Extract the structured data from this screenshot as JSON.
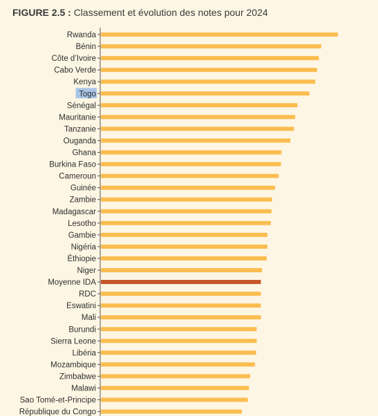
{
  "header": {
    "figure_number": "FIGURE 2.5 :",
    "figure_title": "Classement et évolution des notes pour 2024"
  },
  "colors": {
    "bar": "#fbbd50",
    "highlight_bar": "#c8552a",
    "label_highlight_bg": "#a9c6e8",
    "axis": "#555555",
    "label": "#2f2f2f",
    "background": "#fdf6e4"
  },
  "chart_data": {
    "type": "bar",
    "orientation": "horizontal",
    "title": "Classement et évolution des notes pour 2024",
    "categories": [
      "Rwanda",
      "Bénin",
      "Côte d’Ivoire",
      "Cabo Verde",
      "Kenya",
      "Togo",
      "Sénégal",
      "Mauritanie",
      "Tanzanie",
      "Ouganda",
      "Ghana",
      "Burkina Faso",
      "Cameroun",
      "Guinée",
      "Zambie",
      "Madagascar",
      "Lesotho",
      "Gambie",
      "Nigéria",
      "Éthiopie",
      "Niger",
      "Moyenne IDA",
      "RDC",
      "Eswatini",
      "Mali",
      "Burundi",
      "Sierra Leone",
      "Libéria",
      "Mozambique",
      "Zimbabwe",
      "Malawi",
      "Sao Tomé-et-Principe",
      "République du Congo"
    ],
    "values": [
      4.0,
      3.72,
      3.68,
      3.65,
      3.62,
      3.52,
      3.32,
      3.28,
      3.26,
      3.2,
      3.05,
      3.04,
      3.0,
      2.94,
      2.89,
      2.88,
      2.87,
      2.81,
      2.81,
      2.8,
      2.72,
      2.7,
      2.7,
      2.7,
      2.7,
      2.63,
      2.63,
      2.62,
      2.6,
      2.52,
      2.5,
      2.48,
      2.38
    ],
    "highlight_category": "Moyenne IDA",
    "selected_label": "Togo",
    "xlim": [
      0,
      4.2
    ],
    "grid": false,
    "legend": "none"
  }
}
